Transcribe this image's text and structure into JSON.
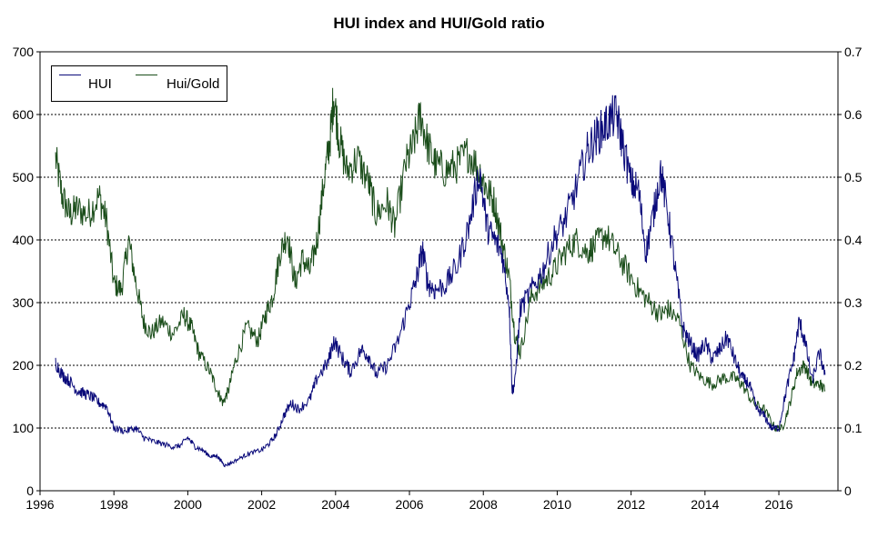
{
  "chart_data": {
    "type": "line",
    "title": "HUI index and HUI/Gold ratio",
    "xlabel": "",
    "ylabel": "",
    "xlim": [
      1996,
      2017.6
    ],
    "x_ticks": [
      "1996",
      "1998",
      "2000",
      "2002",
      "2004",
      "2006",
      "2008",
      "2010",
      "2012",
      "2014",
      "2016"
    ],
    "y_left": {
      "range": [
        0,
        700
      ],
      "ticks": [
        "0",
        "100",
        "200",
        "300",
        "400",
        "500",
        "600",
        "700"
      ]
    },
    "y_right": {
      "range": [
        0,
        0.7
      ],
      "ticks": [
        "0",
        "0.1",
        "0.2",
        "0.3",
        "0.4",
        "0.5",
        "0.6",
        "0.7"
      ]
    },
    "grid": "horizontal dashed",
    "legend": "top-left",
    "series": [
      {
        "name": "HUI",
        "axis": "left",
        "color": "#0a0a7a",
        "x": [
          1996.42,
          1996.6,
          1996.8,
          1997.0,
          1997.2,
          1997.4,
          1997.6,
          1997.8,
          1998.0,
          1998.3,
          1998.6,
          1998.8,
          1999.0,
          1999.3,
          1999.6,
          1999.8,
          2000.0,
          2000.2,
          2000.4,
          2000.6,
          2000.8,
          2000.9,
          2001.0,
          2001.2,
          2001.5,
          2001.7,
          2002.0,
          2002.2,
          2002.4,
          2002.6,
          2002.8,
          2003.0,
          2003.3,
          2003.5,
          2003.8,
          2003.95,
          2004.2,
          2004.4,
          2004.7,
          2004.9,
          2005.1,
          2005.4,
          2005.7,
          2006.0,
          2006.2,
          2006.35,
          2006.5,
          2006.7,
          2007.0,
          2007.3,
          2007.6,
          2007.9,
          2008.1,
          2008.3,
          2008.5,
          2008.7,
          2008.78,
          2008.85,
          2009.0,
          2009.3,
          2009.6,
          2009.9,
          2010.2,
          2010.5,
          2010.8,
          2011.0,
          2011.2,
          2011.4,
          2011.6,
          2011.75,
          2012.0,
          2012.2,
          2012.4,
          2012.6,
          2012.8,
          2013.0,
          2013.2,
          2013.4,
          2013.6,
          2013.8,
          2014.0,
          2014.2,
          2014.4,
          2014.6,
          2014.8,
          2015.0,
          2015.2,
          2015.4,
          2015.6,
          2015.8,
          2016.0,
          2016.2,
          2016.4,
          2016.55,
          2016.7,
          2016.9,
          2017.1,
          2017.25
        ],
        "y": [
          205,
          185,
          175,
          160,
          155,
          150,
          140,
          135,
          100,
          95,
          100,
          85,
          80,
          75,
          70,
          72,
          85,
          70,
          65,
          55,
          55,
          48,
          40,
          45,
          55,
          60,
          65,
          75,
          90,
          120,
          140,
          130,
          145,
          180,
          205,
          240,
          210,
          190,
          225,
          215,
          185,
          200,
          240,
          300,
          340,
          385,
          330,
          320,
          330,
          360,
          420,
          510,
          420,
          400,
          380,
          300,
          160,
          170,
          290,
          320,
          350,
          400,
          430,
          480,
          540,
          560,
          575,
          590,
          600,
          560,
          490,
          480,
          380,
          440,
          510,
          440,
          350,
          260,
          235,
          215,
          235,
          210,
          225,
          245,
          210,
          180,
          170,
          130,
          120,
          100,
          100,
          160,
          210,
          270,
          240,
          175,
          220,
          185
        ]
      },
      {
        "name": "Hui/Gold",
        "axis": "right",
        "color": "#1a4d1a",
        "x": [
          1996.42,
          1996.6,
          1996.8,
          1997.0,
          1997.3,
          1997.6,
          1997.8,
          1998.0,
          1998.2,
          1998.4,
          1998.6,
          1998.8,
          1999.0,
          1999.3,
          1999.6,
          1999.9,
          2000.1,
          2000.3,
          2000.6,
          2000.8,
          2000.95,
          2001.1,
          2001.3,
          2001.6,
          2001.9,
          2002.1,
          2002.3,
          2002.5,
          2002.7,
          2002.9,
          2003.1,
          2003.3,
          2003.5,
          2003.7,
          2003.85,
          2003.95,
          2004.1,
          2004.3,
          2004.6,
          2004.9,
          2005.1,
          2005.4,
          2005.6,
          2005.9,
          2006.1,
          2006.3,
          2006.5,
          2006.7,
          2007.0,
          2007.3,
          2007.6,
          2007.9,
          2008.1,
          2008.3,
          2008.5,
          2008.7,
          2008.85,
          2009.0,
          2009.3,
          2009.6,
          2009.9,
          2010.2,
          2010.5,
          2010.8,
          2011.0,
          2011.3,
          2011.6,
          2011.9,
          2012.2,
          2012.5,
          2012.8,
          2013.0,
          2013.3,
          2013.6,
          2013.9,
          2014.2,
          2014.5,
          2014.8,
          2015.0,
          2015.3,
          2015.6,
          2015.9,
          2016.1,
          2016.3,
          2016.5,
          2016.7,
          2016.9,
          2017.1,
          2017.25
        ],
        "y": [
          0.53,
          0.47,
          0.44,
          0.45,
          0.44,
          0.47,
          0.43,
          0.33,
          0.32,
          0.4,
          0.33,
          0.27,
          0.25,
          0.27,
          0.25,
          0.28,
          0.26,
          0.22,
          0.19,
          0.16,
          0.14,
          0.16,
          0.21,
          0.26,
          0.24,
          0.28,
          0.31,
          0.38,
          0.41,
          0.33,
          0.37,
          0.35,
          0.4,
          0.5,
          0.56,
          0.63,
          0.56,
          0.51,
          0.53,
          0.49,
          0.44,
          0.46,
          0.42,
          0.52,
          0.55,
          0.6,
          0.55,
          0.52,
          0.51,
          0.52,
          0.54,
          0.51,
          0.48,
          0.46,
          0.4,
          0.34,
          0.25,
          0.22,
          0.31,
          0.33,
          0.35,
          0.38,
          0.4,
          0.38,
          0.39,
          0.41,
          0.38,
          0.35,
          0.32,
          0.3,
          0.28,
          0.29,
          0.27,
          0.2,
          0.18,
          0.17,
          0.18,
          0.18,
          0.17,
          0.14,
          0.13,
          0.1,
          0.1,
          0.14,
          0.19,
          0.2,
          0.17,
          0.17,
          0.16
        ]
      }
    ]
  }
}
